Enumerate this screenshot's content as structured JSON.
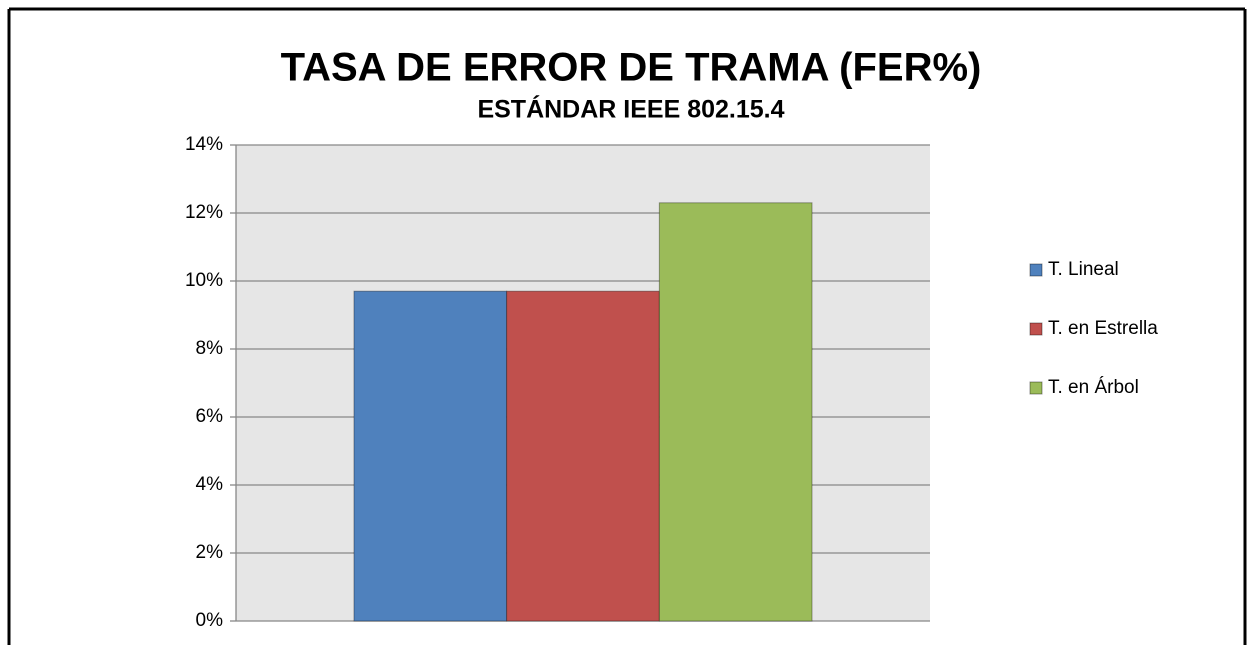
{
  "chart_data": {
    "type": "bar",
    "title": "TASA DE ERROR DE TRAMA (FER%)",
    "subtitle": "ESTÁNDAR IEEE 802.15.4",
    "categories": [
      null
    ],
    "series": [
      {
        "name": "T. Lineal",
        "color": "#4f81bd",
        "values": [
          9.7
        ]
      },
      {
        "name": "T. en Estrella",
        "color": "#c0504d",
        "values": [
          9.7
        ]
      },
      {
        "name": "T. en Árbol",
        "color": "#9bbb59",
        "values": [
          12.3
        ]
      }
    ],
    "ylim": [
      0,
      14
    ],
    "yticks": [
      {
        "value": 0,
        "label": "0%"
      },
      {
        "value": 2,
        "label": "2%"
      },
      {
        "value": 4,
        "label": "4%"
      },
      {
        "value": 6,
        "label": "6%"
      },
      {
        "value": 8,
        "label": "8%"
      },
      {
        "value": 10,
        "label": "10%"
      },
      {
        "value": 12,
        "label": "12%"
      },
      {
        "value": 14,
        "label": "14%"
      }
    ],
    "grid": true,
    "legend": "right"
  }
}
